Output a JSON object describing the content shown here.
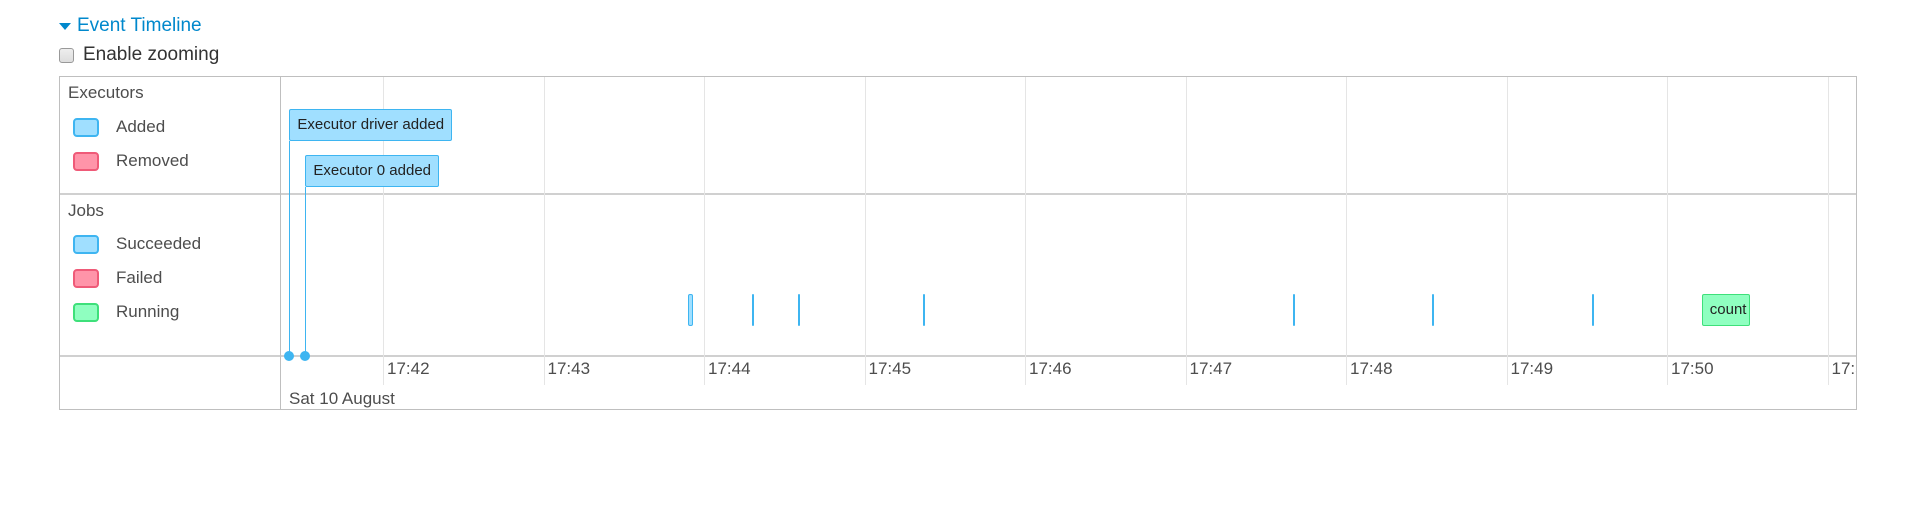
{
  "header": {
    "title": "Event Timeline",
    "zoom_label": "Enable zooming",
    "zoom_checked": false
  },
  "groups": {
    "executors": {
      "label": "Executors",
      "legend": [
        {
          "label": "Added",
          "color": "#a0dfff",
          "border": "#3eb5f1"
        },
        {
          "label": "Removed",
          "color": "#ff94a9",
          "border": "#ef5a78"
        }
      ]
    },
    "jobs": {
      "label": "Jobs",
      "legend": [
        {
          "label": "Succeeded",
          "color": "#a0dfff",
          "border": "#3eb5f1"
        },
        {
          "label": "Failed",
          "color": "#ff94a9",
          "border": "#ef5a78"
        },
        {
          "label": "Running",
          "color": "#8fffc0",
          "border": "#3ee07a"
        }
      ]
    }
  },
  "axis": {
    "date_label": "Sat 10 August",
    "ticks": [
      "17:42",
      "17:43",
      "17:44",
      "17:45",
      "17:46",
      "17:47",
      "17:48",
      "17:49",
      "17:50",
      "17:51"
    ]
  },
  "executor_events": [
    {
      "label": "Executor driver added",
      "time": "17:41:25"
    },
    {
      "label": "Executor 0 added",
      "time": "17:41:31"
    }
  ],
  "jobs": [
    {
      "status": "succeeded",
      "start": "17:43:54",
      "end": "17:43:56"
    },
    {
      "status": "succeeded",
      "start": "17:44:18",
      "end": "17:44:18"
    },
    {
      "status": "succeeded",
      "start": "17:44:35",
      "end": "17:44:35"
    },
    {
      "status": "succeeded",
      "start": "17:45:22",
      "end": "17:45:22"
    },
    {
      "status": "succeeded",
      "start": "17:47:40",
      "end": "17:47:41"
    },
    {
      "status": "succeeded",
      "start": "17:48:32",
      "end": "17:48:32"
    },
    {
      "status": "succeeded",
      "start": "17:49:32",
      "end": "17:49:32"
    },
    {
      "status": "running",
      "start": "17:50:13",
      "end": "17:50:31",
      "label": "count"
    }
  ]
}
